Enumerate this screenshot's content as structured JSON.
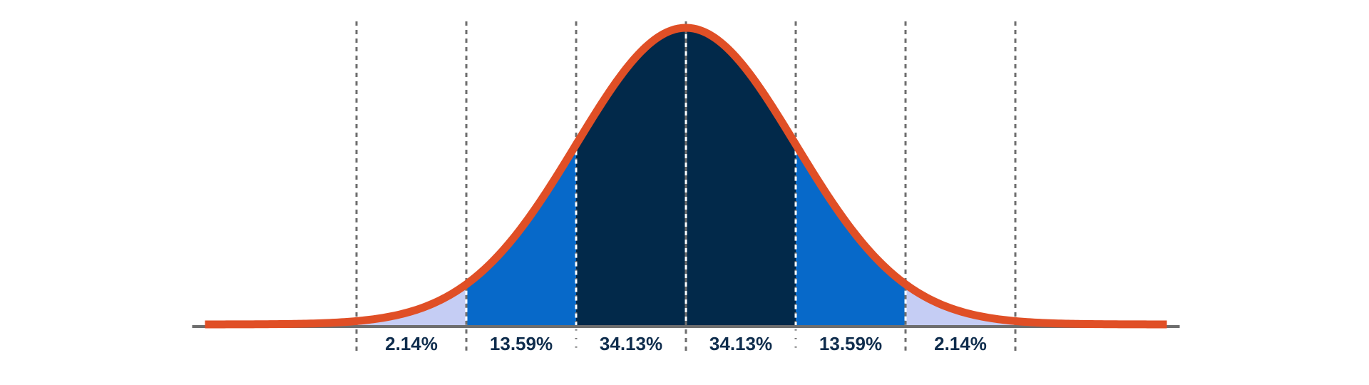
{
  "chart_data": {
    "type": "area",
    "title": "",
    "xlabel": "",
    "ylabel": "",
    "xlim": [
      -3,
      3
    ],
    "grid": false,
    "legend": "none",
    "curve": {
      "name": "",
      "function": "normal_pdf",
      "mean": 0,
      "std_dev": 1
    },
    "boundaries": [
      -3,
      -2,
      -1,
      0,
      1,
      2,
      3
    ],
    "bands": [
      {
        "from": -3,
        "to": -2,
        "percent": 2.14,
        "label": "2.14%",
        "color": "#c5cdf4"
      },
      {
        "from": -2,
        "to": -1,
        "percent": 13.59,
        "label": "13.59%",
        "color": "#0769c9"
      },
      {
        "from": -1,
        "to": 0,
        "percent": 34.13,
        "label": "34.13%",
        "color": "#02294a"
      },
      {
        "from": 0,
        "to": 1,
        "percent": 34.13,
        "label": "34.13%",
        "color": "#02294a"
      },
      {
        "from": 1,
        "to": 2,
        "percent": 13.59,
        "label": "13.59%",
        "color": "#0769c9"
      },
      {
        "from": 2,
        "to": 3,
        "percent": 2.14,
        "label": "2.14%",
        "color": "#c5cdf4"
      }
    ],
    "colors": {
      "curve": "#e04f26",
      "baseline": "#6e6e6e",
      "divider": "#6e6e6e",
      "divider_inside": "#ffffff",
      "label_text": "#0f2d4d"
    }
  }
}
